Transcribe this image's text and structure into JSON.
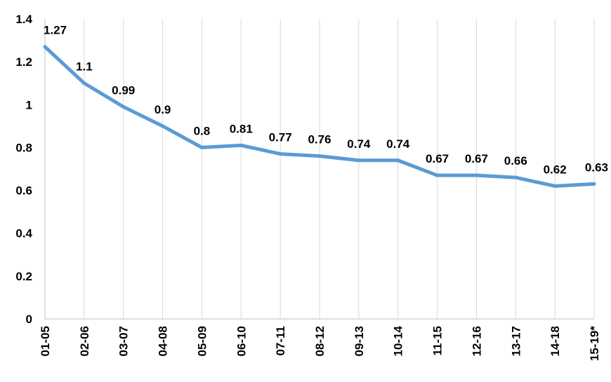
{
  "chart_data": {
    "type": "line",
    "title": "",
    "xlabel": "",
    "ylabel": "",
    "categories": [
      "01-05",
      "02-06",
      "03-07",
      "04-08",
      "05-09",
      "06-10",
      "07-11",
      "08-12",
      "09-13",
      "10-14",
      "11-15",
      "12-16",
      "13-17",
      "14-18",
      "15-19*"
    ],
    "series": [
      {
        "values": [
          1.27,
          1.1,
          0.99,
          0.9,
          0.8,
          0.81,
          0.77,
          0.76,
          0.74,
          0.74,
          0.67,
          0.67,
          0.66,
          0.62,
          0.63
        ]
      }
    ],
    "data_labels": [
      "1.27",
      "1.1",
      "0.99",
      "0.9",
      "0.8",
      "0.81",
      "0.77",
      "0.76",
      "0.74",
      "0.74",
      "0.67",
      "0.67",
      "0.66",
      "0.62",
      "0.63"
    ],
    "y_ticks": [
      "0",
      "0.2",
      "0.4",
      "0.6",
      "0.8",
      "1",
      "1.2",
      "1.4"
    ],
    "ylim": [
      0,
      1.4
    ],
    "grid": "vertical",
    "legend": "none",
    "line_color": "#5b9bd5"
  }
}
